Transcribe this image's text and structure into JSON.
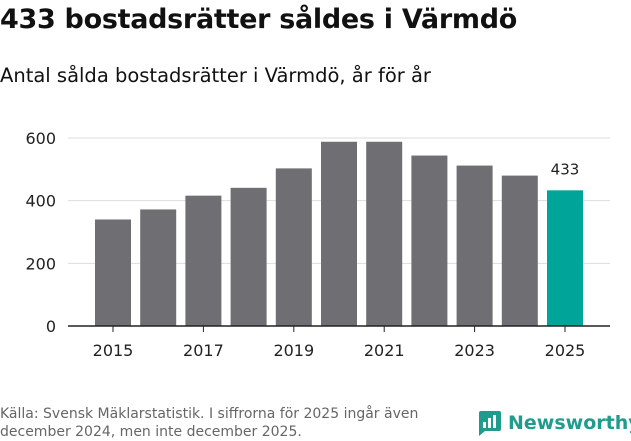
{
  "title": "433 bostadsrätter såldes i Värmdö",
  "subtitle": "Antal sålda bostadsrätter i Värmdö, år för år",
  "footer": {
    "source_line1": "Källa: Svensk Mäklarstatistik. I siffrorna för 2025 ingår även",
    "source_line2": "december 2024, men inte december 2025.",
    "brand": "Newsworthy"
  },
  "colors": {
    "bar": "#6f6e73",
    "highlight": "#00a499",
    "brand": "#1f9c8c"
  },
  "chart_data": {
    "type": "bar",
    "categories": [
      "2015",
      "2016",
      "2017",
      "2018",
      "2019",
      "2020",
      "2021",
      "2022",
      "2023",
      "2024",
      "2025"
    ],
    "values": [
      340,
      372,
      416,
      441,
      503,
      588,
      588,
      544,
      512,
      480,
      433
    ],
    "highlight_index": 10,
    "highlight_label": "433",
    "x_tick_labels": [
      "2015",
      "2017",
      "2019",
      "2021",
      "2023",
      "2025"
    ],
    "y_ticks": [
      0,
      200,
      400,
      600
    ],
    "ylim": [
      0,
      620
    ],
    "title": "433 bostadsrätter såldes i Värmdö",
    "xlabel": "",
    "ylabel": "",
    "grid": true,
    "legend": "none"
  }
}
